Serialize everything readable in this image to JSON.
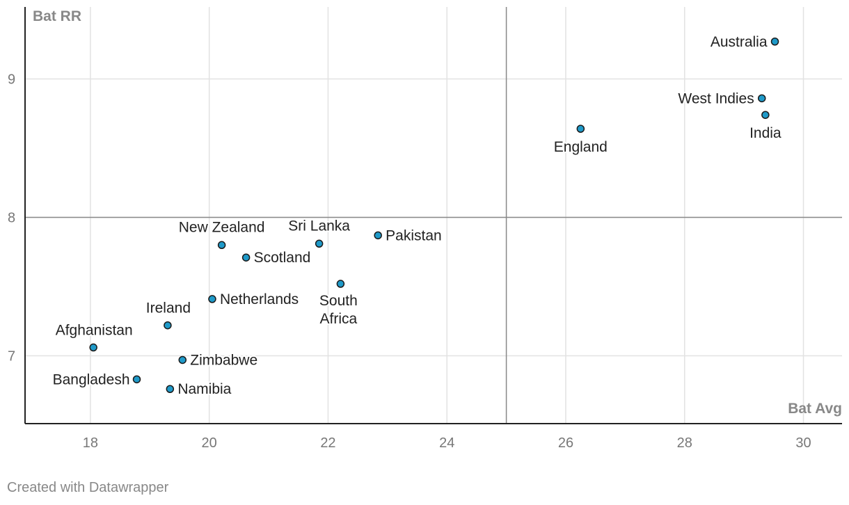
{
  "chart_data": {
    "type": "scatter",
    "title": "",
    "xlabel": "Bat Avg",
    "ylabel": "Bat RR",
    "xlim": [
      16.9,
      30.65
    ],
    "ylim": [
      6.51,
      9.52
    ],
    "xticks": [
      18,
      20,
      22,
      24,
      26,
      28,
      30
    ],
    "yticks": [
      7,
      8,
      9
    ],
    "reference_lines": {
      "x": 25,
      "y": 8
    },
    "marker_color": "#1f9ac9",
    "points": [
      {
        "name": "Australia",
        "x": 29.52,
        "y": 9.27
      },
      {
        "name": "West Indies",
        "x": 29.3,
        "y": 8.86
      },
      {
        "name": "India",
        "x": 29.36,
        "y": 8.74
      },
      {
        "name": "England",
        "x": 26.25,
        "y": 8.64
      },
      {
        "name": "Pakistan",
        "x": 22.84,
        "y": 7.87
      },
      {
        "name": "Sri Lanka",
        "x": 21.85,
        "y": 7.81
      },
      {
        "name": "New Zealand",
        "x": 20.21,
        "y": 7.8
      },
      {
        "name": "Scotland",
        "x": 20.62,
        "y": 7.71
      },
      {
        "name": "South Africa",
        "x": 22.21,
        "y": 7.52
      },
      {
        "name": "Netherlands",
        "x": 20.05,
        "y": 7.41
      },
      {
        "name": "Ireland",
        "x": 19.3,
        "y": 7.22
      },
      {
        "name": "Afghanistan",
        "x": 18.05,
        "y": 7.06
      },
      {
        "name": "Zimbabwe",
        "x": 19.55,
        "y": 6.97
      },
      {
        "name": "Bangladesh",
        "x": 18.78,
        "y": 6.83
      },
      {
        "name": "Namibia",
        "x": 19.34,
        "y": 6.76
      }
    ]
  },
  "footer": "Created with Datawrapper"
}
